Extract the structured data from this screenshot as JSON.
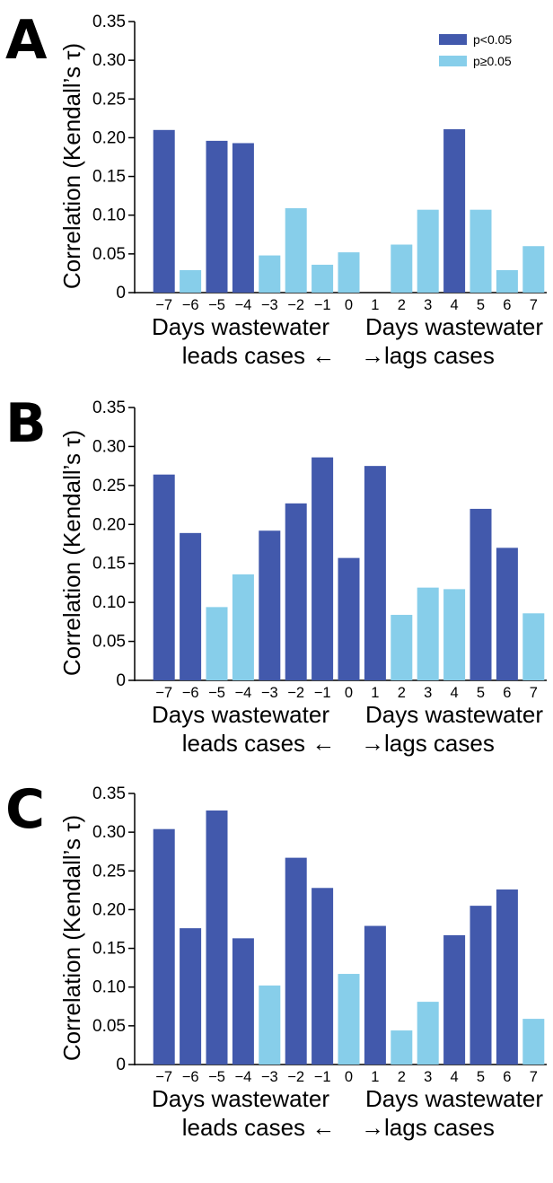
{
  "colors": {
    "significant": "#4259ac",
    "not_significant": "#87ceea"
  },
  "legend": {
    "significant_label": "p<0.05",
    "not_significant_label": "p≥0.05"
  },
  "xlabel_left": [
    "Days wastewater",
    "leads cases ←"
  ],
  "xlabel_right": [
    "Days wastewater",
    "→lags cases"
  ],
  "ylabel": "Correlation (Kendall’s τ)",
  "chart_data": [
    {
      "panel": "A",
      "type": "bar",
      "categories": [
        "−7",
        "−6",
        "−5",
        "−4",
        "−3",
        "−2",
        "−1",
        "0",
        "1",
        "2",
        "3",
        "4",
        "5",
        "6",
        "7"
      ],
      "values": [
        0.21,
        0.029,
        0.196,
        0.193,
        0.048,
        0.109,
        0.036,
        0.052,
        0.0,
        0.062,
        0.107,
        0.211,
        0.107,
        0.029,
        0.06
      ],
      "significant": [
        true,
        false,
        true,
        true,
        false,
        false,
        false,
        false,
        false,
        false,
        false,
        true,
        false,
        false,
        false
      ],
      "yticks": [
        "0",
        "0.05",
        "0.10",
        "0.15",
        "0.20",
        "0.25",
        "0.30",
        "0.35"
      ],
      "ylim": [
        0,
        0.35
      ],
      "legend": "top-right"
    },
    {
      "panel": "B",
      "type": "bar",
      "categories": [
        "−7",
        "−6",
        "−5",
        "−4",
        "−3",
        "−2",
        "−1",
        "0",
        "1",
        "2",
        "3",
        "4",
        "5",
        "6",
        "7"
      ],
      "values": [
        0.264,
        0.189,
        0.094,
        0.136,
        0.192,
        0.227,
        0.286,
        0.157,
        0.275,
        0.084,
        0.119,
        0.117,
        0.22,
        0.17,
        0.086
      ],
      "significant": [
        true,
        true,
        false,
        false,
        true,
        true,
        true,
        true,
        true,
        false,
        false,
        false,
        true,
        true,
        false
      ],
      "yticks": [
        "0",
        "0.05",
        "0.10",
        "0.15",
        "0.20",
        "0.25",
        "0.30",
        "0.35"
      ],
      "ylim": [
        0,
        0.35
      ]
    },
    {
      "panel": "C",
      "type": "bar",
      "categories": [
        "−7",
        "−6",
        "−5",
        "−4",
        "−3",
        "−2",
        "−1",
        "0",
        "1",
        "2",
        "3",
        "4",
        "5",
        "6",
        "7"
      ],
      "values": [
        0.304,
        0.176,
        0.328,
        0.163,
        0.102,
        0.267,
        0.228,
        0.117,
        0.179,
        0.044,
        0.081,
        0.167,
        0.205,
        0.226,
        0.059
      ],
      "significant": [
        true,
        true,
        true,
        true,
        false,
        true,
        true,
        false,
        true,
        false,
        false,
        true,
        true,
        true,
        false
      ],
      "yticks": [
        "0",
        "0.05",
        "0.10",
        "0.15",
        "0.20",
        "0.25",
        "0.30",
        "0.35"
      ],
      "ylim": [
        0,
        0.35
      ]
    }
  ]
}
